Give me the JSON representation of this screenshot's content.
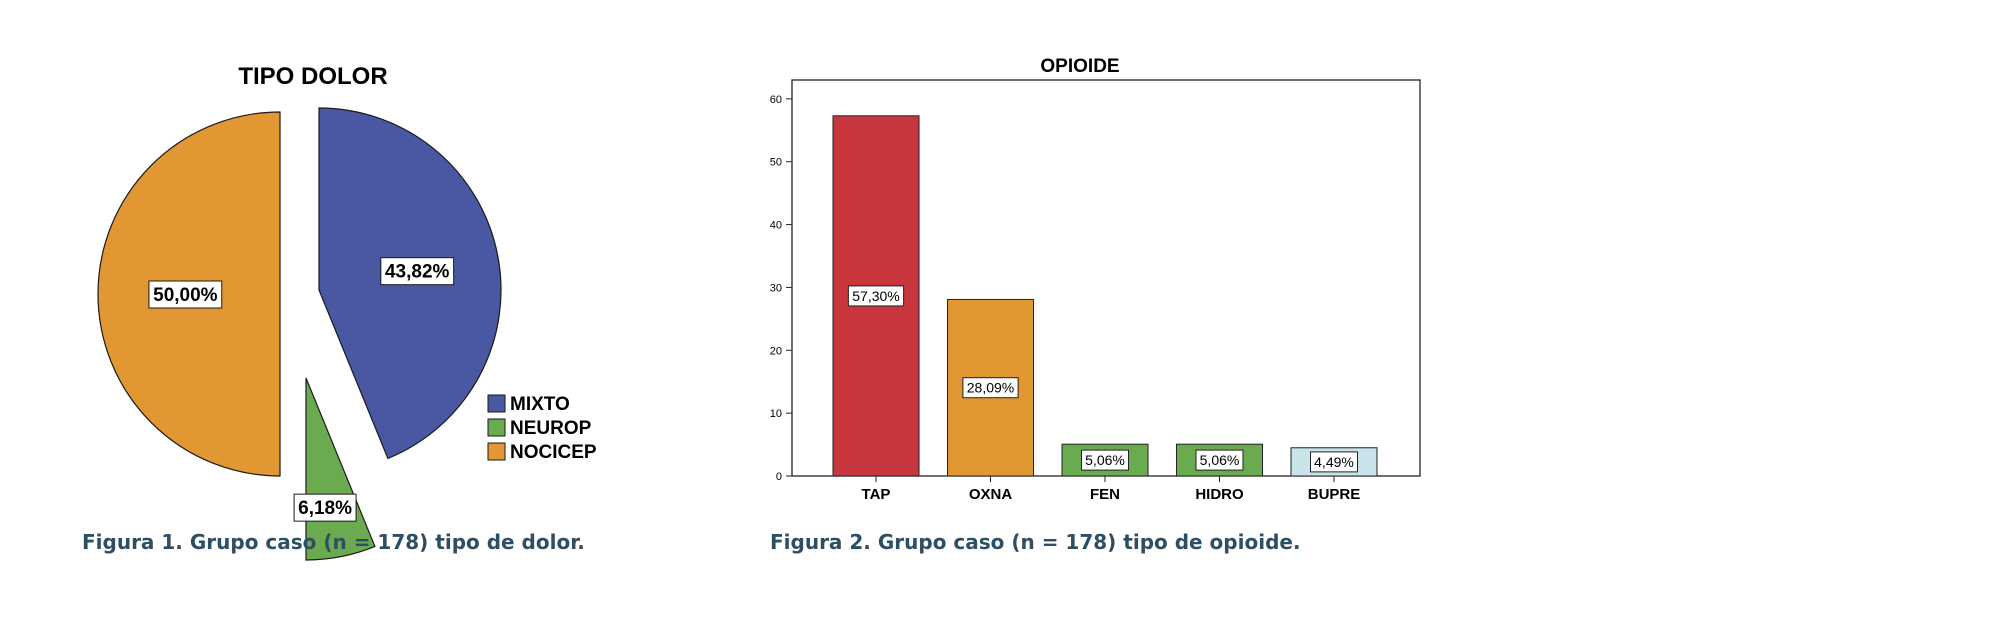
{
  "chart_data": [
    {
      "type": "pie",
      "title": "TIPO DOLOR",
      "categories": [
        "MIXTO",
        "NEUROP",
        "NOCICEP"
      ],
      "values": [
        43.82,
        6.18,
        50.0
      ],
      "labels": [
        "43,82%",
        "6,18%",
        "50,00%"
      ],
      "colors": [
        "#4a58a3",
        "#6aab4f",
        "#e19732"
      ],
      "legend": "right",
      "exploded": true
    },
    {
      "type": "bar",
      "title": "OPIOIDE",
      "categories": [
        "TAP",
        "OXNA",
        "FEN",
        "HIDRO",
        "BUPRE"
      ],
      "values": [
        57.3,
        28.09,
        5.06,
        5.06,
        4.49
      ],
      "labels": [
        "57,30%",
        "28,09%",
        "5,06%",
        "5,06%",
        "4,49%"
      ],
      "colors": [
        "#c8373d",
        "#e19732",
        "#6aab4f",
        "#6aab4f",
        "#c8e3ea"
      ],
      "ylim": [
        0,
        63
      ],
      "yticks": [
        0,
        10,
        20,
        30,
        40,
        50,
        60
      ],
      "grid": false,
      "xlabel": "",
      "ylabel": ""
    }
  ],
  "captions": {
    "figure1": "Figura 1. Grupo caso (n = 178) tipo de dolor.",
    "figure2": "Figura 2. Grupo caso (n = 178) tipo de opioide."
  }
}
